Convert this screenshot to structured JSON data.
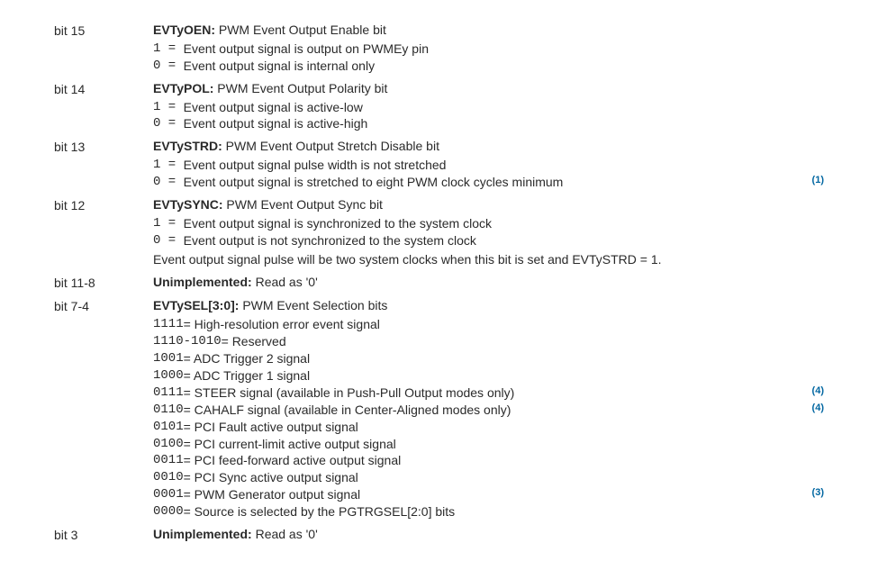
{
  "bits": [
    {
      "label": "bit 15",
      "name": "EVTyOEN:",
      "title": " PWM Event Output Enable bit",
      "lines": [
        {
          "lead": "1 = ",
          "text": " Event output signal is output on PWMEy pin"
        },
        {
          "lead": "0 = ",
          "text": " Event output signal is internal only"
        }
      ]
    },
    {
      "label": "bit 14",
      "name": "EVTyPOL:",
      "title": " PWM Event Output Polarity bit",
      "lines": [
        {
          "lead": "1 = ",
          "text": " Event output signal is active-low"
        },
        {
          "lead": "0 = ",
          "text": " Event output signal is active-high"
        }
      ]
    },
    {
      "label": "bit 13",
      "name": "EVTySTRD:",
      "title": " PWM Event Output Stretch Disable bit",
      "lines": [
        {
          "lead": "1 = ",
          "text": " Event output signal pulse width is not stretched"
        },
        {
          "lead": "0 = ",
          "text": " Event output signal is stretched to eight PWM clock cycles minimum",
          "sup": "(1)"
        }
      ]
    },
    {
      "label": "bit 12",
      "name": "EVTySYNC:",
      "title": " PWM Event Output Sync bit",
      "lines": [
        {
          "lead": "1 = ",
          "text": " Event output signal is synchronized to the system clock"
        },
        {
          "lead": "0 = ",
          "text": " Event output is not synchronized to the system clock"
        }
      ],
      "note": "Event output signal pulse will be two system clocks when this bit is set and EVTySTRD = 1."
    },
    {
      "label": "bit 11-8",
      "name": "Unimplemented:",
      "title": " Read as '0'"
    },
    {
      "label": "bit 7-4",
      "name": "EVTySEL[3:0]:",
      "title": " PWM Event Selection bits",
      "lines": [
        {
          "lead": "1111",
          "text": " = High-resolution error event signal"
        },
        {
          "lead": "1110-1010",
          "text": " = Reserved"
        },
        {
          "lead": "1001",
          "text": " = ADC Trigger 2 signal"
        },
        {
          "lead": "1000",
          "text": " = ADC Trigger 1 signal"
        },
        {
          "lead": "0111",
          "text": " = STEER signal (available in Push-Pull Output modes only)",
          "sup": "(4)"
        },
        {
          "lead": "0110",
          "text": " = CAHALF signal (available in Center-Aligned modes only)",
          "sup": "(4)"
        },
        {
          "lead": "0101",
          "text": " = PCI Fault active output signal"
        },
        {
          "lead": "0100",
          "text": " = PCI current-limit active output signal"
        },
        {
          "lead": "0011",
          "text": " = PCI feed-forward active output signal"
        },
        {
          "lead": "0010",
          "text": " = PCI Sync active output signal"
        },
        {
          "lead": "0001",
          "text": " = PWM Generator output signal",
          "sup": "(3)"
        },
        {
          "lead": "0000",
          "text": " = Source is selected by the PGTRGSEL[2:0] bits"
        }
      ]
    },
    {
      "label": "bit 3",
      "name": "Unimplemented:",
      "title": " Read as '0'"
    }
  ],
  "colors": {
    "text": "#2a2a2a",
    "sup": "#0066a1",
    "background": "#ffffff"
  },
  "fontsize": 14
}
